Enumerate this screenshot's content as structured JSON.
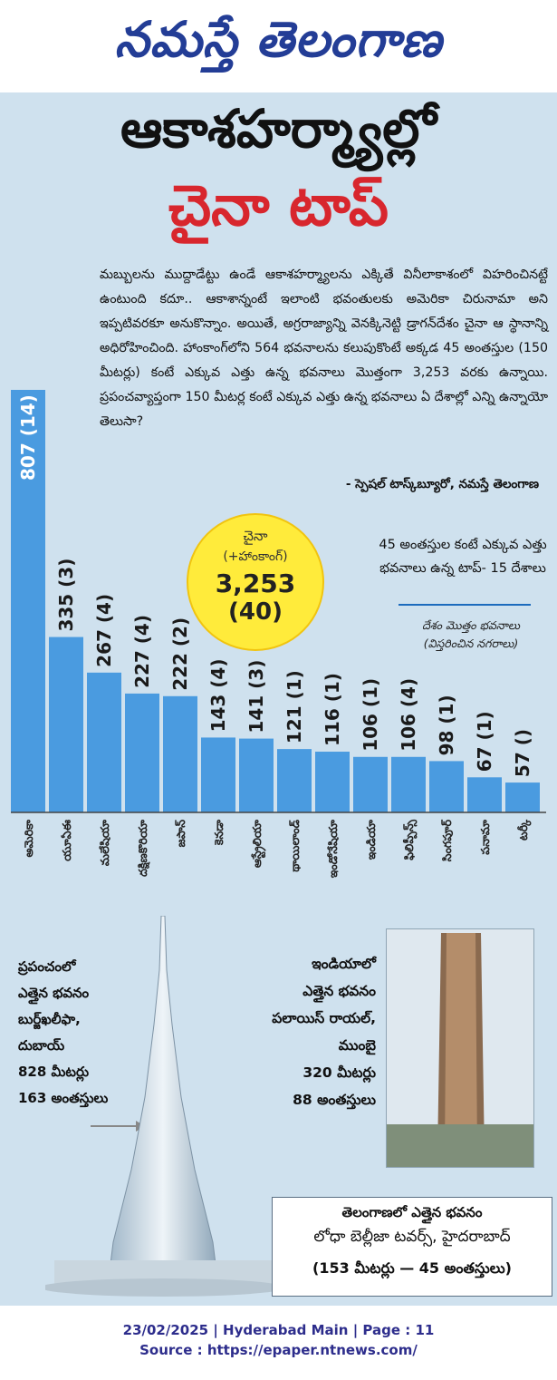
{
  "masthead": {
    "name": "నమస్తే తెలంగాణ"
  },
  "headline": {
    "line1": "ఆకాశహర్మ్యాల్లో",
    "line2": "చైనా టాప్"
  },
  "intro": {
    "text": "మబ్బులను ముద్దాడేట్టు ఉండే ఆకాశహర్మ్యాలను ఎక్కితే వినీలాకాశంలో విహరించినట్టే ఉంటుంది కదూ.. ఆకాశాన్నంటే ఇలాంటి భవంతులకు అమెరికా చిరునామా అని ఇప్పటివరకూ అనుకొన్నాం. అయితే, అగ్రరాజ్యాన్ని వెనక్కినెట్టి డ్రాగన్‌దేశం చైనా ఆ స్థానాన్ని అధిరోహించింది. హాంకాంగ్‌లోని 564 భవనాలను కలుపుకొంటే అక్కడ 45 అంతస్తుల (150 మీటర్లు) కంటే ఎక్కువ ఎత్తు ఉన్న భవనాలు మొత్తంగా 3,253 వరకు ఉన్నాయి. ప్రపంచవ్యాప్తంగా 150 మీటర్ల కంటే ఎక్కువ ఎత్తు ఉన్న భవనాలు ఏ దేశాల్లో ఎన్ని ఉన్నాయో తెలుసా?"
  },
  "byline": "- స్పెషల్ టాస్క్‌బ్యూరో, నమస్తే తెలంగాణ",
  "china": {
    "name": "చైనా",
    "sub": "(+హాంకాంగ్)",
    "value": "3,253",
    "cities": "(40)"
  },
  "key": {
    "title": "45 అంతస్తుల కంటే ఎక్కువ ఎత్తు భవనాలు ఉన్న టాప్- 15 దేశాలు",
    "legend1": "దేశం మొత్తం భవనాలు",
    "legend2": "(విస్తరించిన నగరాలు)"
  },
  "chart_data": {
    "type": "bar",
    "categories": [
      "అమెరికా",
      "యూఏఈ",
      "మలేషియా",
      "దక్షిణకొరియా",
      "జపాన్",
      "కెనడా",
      "ఆస్ట్రేలియా",
      "థాయిలాండ్",
      "ఇండోనేషియా",
      "ఇండియా",
      "ఫిలిప్పీన్స్",
      "సింగపూర్",
      "పనామా",
      "టర్కీ"
    ],
    "values": [
      807,
      335,
      267,
      227,
      222,
      143,
      141,
      121,
      116,
      106,
      106,
      98,
      67,
      57
    ],
    "labels": [
      "807 (14)",
      "335 (3)",
      "267 (4)",
      "227 (4)",
      "222 (2)",
      "143 (4)",
      "141 (3)",
      "121 (1)",
      "116 (1)",
      "106 (1)",
      "106 (4)",
      "98 (1)",
      "67 (1)",
      "57 ()"
    ],
    "bar_color": "#4a9be0"
  },
  "world": {
    "lines": [
      "ప్రపంచంలో",
      "ఎత్తైన భవనం",
      "బుర్జ్‌ఖలీఫా,",
      "దుబాయ్",
      "828 మీటర్లు",
      "163 అంతస్తులు"
    ]
  },
  "india": {
    "lines": [
      "ఇండియాలో",
      "ఎత్తైన భవనం",
      "పలాయిస్ రాయల్,",
      "ముంబై",
      "320 మీటర్లు",
      "88 అంతస్తులు"
    ]
  },
  "telangana": {
    "line1": "తెలంగాణలో ఎత్తైన భవనం",
    "line2": "లోధా బెల్లీజా టవర్స్, హైదరాబాద్",
    "line3": "(153 మీటర్లు — 45 అంతస్తులు)"
  },
  "footer": {
    "line1": "23/02/2025 | Hyderabad Main | Page : 11",
    "line2": "Source : https://epaper.ntnews.com/"
  },
  "colors": {
    "masthead": "#233d96",
    "headline_red": "#d8262d",
    "panel": "#cfe1ee",
    "circle": "#ffeb3b"
  }
}
